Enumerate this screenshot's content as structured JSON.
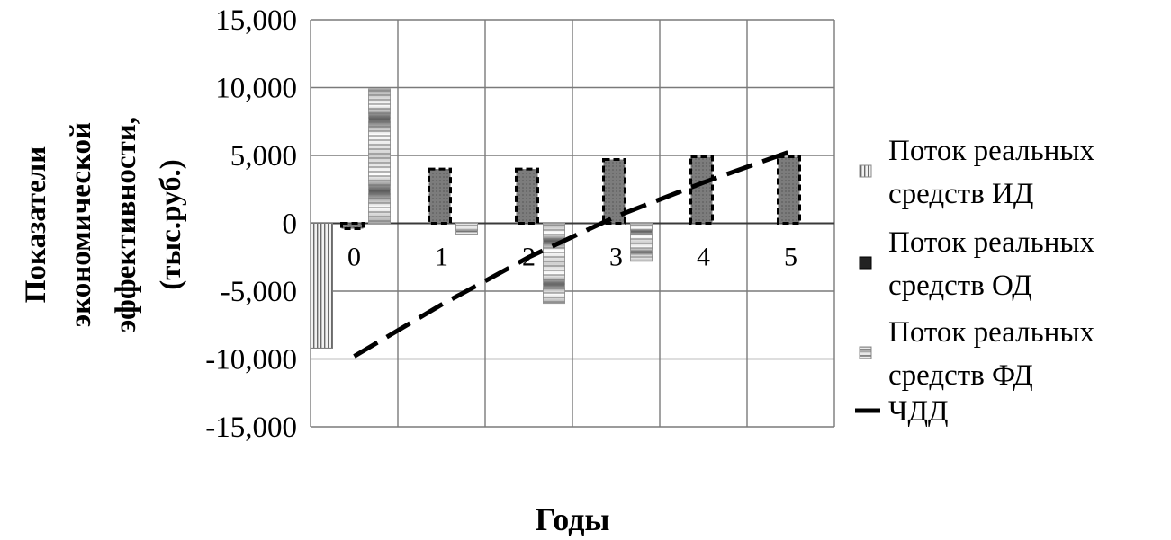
{
  "chart_data": {
    "type": "bar",
    "xlabel": "Годы",
    "ylabel_lines": [
      "Показатели",
      "экономической",
      "эффективности,",
      "(тыс.руб.)"
    ],
    "categories": [
      "0",
      "1",
      "2",
      "3",
      "4",
      "5"
    ],
    "ylim": [
      -15000,
      15000
    ],
    "yticks": [
      15000,
      10000,
      5000,
      0,
      -5000,
      -10000,
      -15000
    ],
    "ytick_labels": [
      "15,000",
      "10,000",
      "5,000",
      "0",
      "-5,000",
      "-10,000",
      "-15,000"
    ],
    "grid": true,
    "legend_position": "right",
    "series": [
      {
        "name": "Поток реальных средств ИД",
        "kind": "bar",
        "pattern": "vertical-stripes",
        "values": [
          -9200,
          0,
          0,
          0,
          0,
          0
        ]
      },
      {
        "name": "Поток реальных средств ОД",
        "kind": "bar",
        "pattern": "dark-dashed",
        "values": [
          -400,
          4000,
          4000,
          4700,
          4900,
          4900
        ]
      },
      {
        "name": "Поток реальных средств ФД",
        "kind": "bar",
        "pattern": "horizontal-stripes",
        "values": [
          9900,
          -800,
          -5900,
          -2800,
          0,
          0
        ]
      },
      {
        "name": "ЧДД",
        "kind": "line",
        "style": "dashed",
        "values": [
          -9800,
          -6000,
          -2500,
          500,
          3000,
          5300
        ]
      }
    ]
  }
}
